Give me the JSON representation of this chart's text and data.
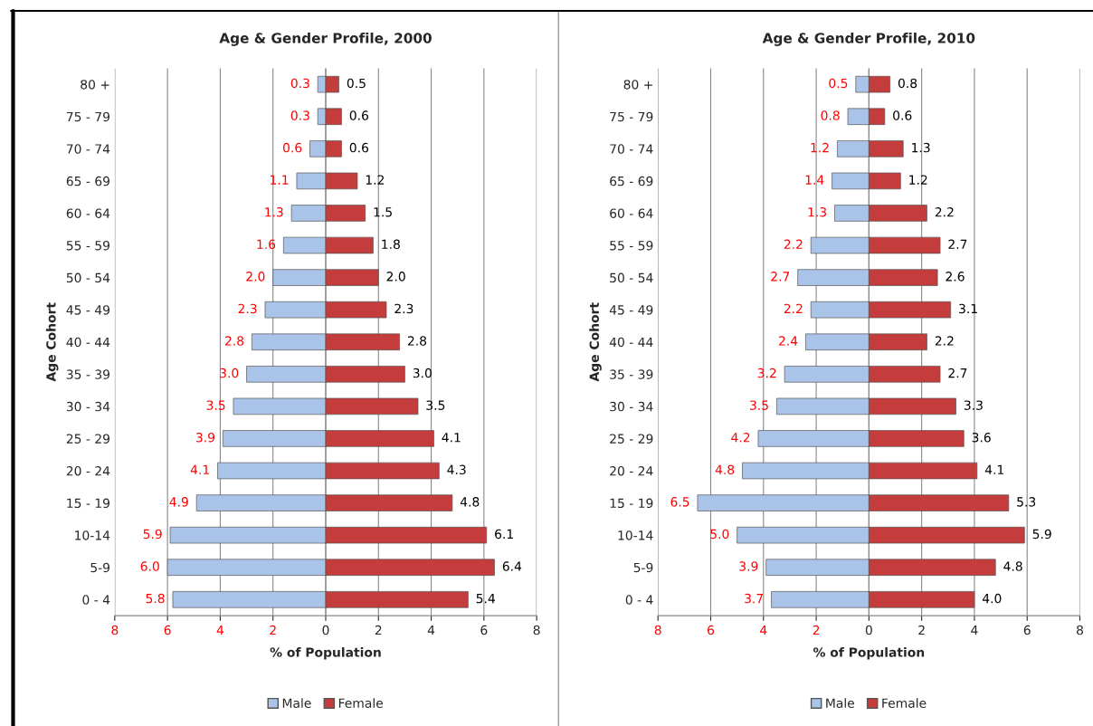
{
  "chart_data": [
    {
      "type": "bar",
      "orientation": "horizontal",
      "title": "Age & Gender Profile, 2000",
      "xlabel": "% of Population",
      "ylabel": "Age Cohort",
      "categories": [
        "80 +",
        "75 - 79",
        "70 - 74",
        "65 - 69",
        "60 - 64",
        "55 - 59",
        "50 - 54",
        "45 - 49",
        "40 - 44",
        "35 - 39",
        "30 - 34",
        "25 - 29",
        "20 - 24",
        "15 - 19",
        "10-14",
        "5-9",
        "0 - 4"
      ],
      "series": [
        {
          "name": "Male",
          "color": "#a9c4e8",
          "base": [
            -0.3,
            -0.3,
            -0.6,
            -1.1,
            -1.3,
            -1.6,
            -2.0,
            -2.3,
            -2.8,
            -3.0,
            -3.5,
            -3.9,
            -4.1,
            -4.9,
            -5.9,
            -6.0,
            -5.8
          ],
          "values": [
            0.3,
            0.3,
            0.6,
            1.1,
            1.3,
            1.6,
            2.0,
            2.3,
            2.8,
            3.0,
            3.5,
            3.9,
            4.1,
            4.9,
            5.9,
            6.0,
            5.8
          ],
          "value_labels": [
            "0.3",
            "0.3",
            "0.6",
            "1.1",
            "1.3",
            "1.6",
            "2.0",
            "2.3",
            "2.8",
            "3.0",
            "3.5",
            "3.9",
            "4.1",
            "4.9",
            "5.9",
            "6.0",
            "5.8"
          ]
        },
        {
          "name": "Female",
          "color": "#c43c3c",
          "values": [
            0.5,
            0.6,
            0.6,
            1.2,
            1.5,
            1.8,
            2.0,
            2.3,
            2.8,
            3.0,
            3.5,
            4.1,
            4.3,
            4.8,
            6.1,
            6.4,
            5.4
          ],
          "value_labels": [
            "0.5",
            "0.6",
            "0.6",
            "1.2",
            "1.5",
            "1.8",
            "2.0",
            "2.3",
            "2.8",
            "3.0",
            "3.5",
            "4.1",
            "4.3",
            "4.8",
            "6.1",
            "6.4",
            "5.4"
          ]
        }
      ],
      "xlim": [
        -8,
        8
      ],
      "xticks": [
        {
          "value": -8,
          "label": "8"
        },
        {
          "value": -6,
          "label": "6"
        },
        {
          "value": -4,
          "label": "4"
        },
        {
          "value": -2,
          "label": "2"
        },
        0,
        2,
        4,
        6,
        8
      ],
      "grid": "x",
      "legend": "bottom"
    },
    {
      "type": "bar",
      "orientation": "horizontal",
      "title": "Age & Gender Profile, 2010",
      "xlabel": "% of Population",
      "ylabel": "Age Cohort",
      "categories": [
        "80 +",
        "75 - 79",
        "70 - 74",
        "65 - 69",
        "60 - 64",
        "55 - 59",
        "50 - 54",
        "45 - 49",
        "40 - 44",
        "35 - 39",
        "30 - 34",
        "25 - 29",
        "20 - 24",
        "15 - 19",
        "10-14",
        "5-9",
        "0 - 4"
      ],
      "series": [
        {
          "name": "Male",
          "color": "#a9c4e8",
          "base": [
            -0.5,
            -0.8,
            -1.2,
            -1.4,
            -1.3,
            -2.2,
            -2.7,
            -2.2,
            -2.4,
            -3.2,
            -3.5,
            -4.2,
            -4.8,
            -6.5,
            -5.0,
            -3.9,
            -3.7
          ],
          "values": [
            0.5,
            0.8,
            1.2,
            1.4,
            1.3,
            2.2,
            2.7,
            2.2,
            2.4,
            3.2,
            3.5,
            4.2,
            4.8,
            6.5,
            5.0,
            3.9,
            3.7
          ],
          "value_labels": [
            "0.5",
            "0.8",
            "1.2",
            "1.4",
            "1.3",
            "2.2",
            "2.7",
            "2.2",
            "2.4",
            "3.2",
            "3.5",
            "4.2",
            "4.8",
            "6.5",
            "5.0",
            "3.9",
            "3.7"
          ]
        },
        {
          "name": "Female",
          "color": "#c43c3c",
          "values": [
            0.8,
            0.6,
            1.3,
            1.2,
            2.2,
            2.7,
            2.6,
            3.1,
            2.2,
            2.7,
            3.3,
            3.6,
            4.1,
            5.3,
            5.9,
            4.8,
            4.0
          ],
          "value_labels": [
            "0.8",
            "0.6",
            "1.3",
            "1.2",
            "2.2",
            "2.7",
            "2.6",
            "3.1",
            "2.2",
            "2.7",
            "3.3",
            "3.6",
            "4.1",
            "5.3",
            "5.9",
            "4.8",
            "4.0"
          ]
        }
      ],
      "xlim": [
        -8,
        8
      ],
      "xticks": [
        {
          "value": -8,
          "label": "8"
        },
        {
          "value": -6,
          "label": "6"
        },
        {
          "value": -4,
          "label": "4"
        },
        {
          "value": -2,
          "label": "2"
        },
        0,
        2,
        4,
        6,
        8
      ],
      "grid": "x",
      "legend": "bottom"
    }
  ]
}
